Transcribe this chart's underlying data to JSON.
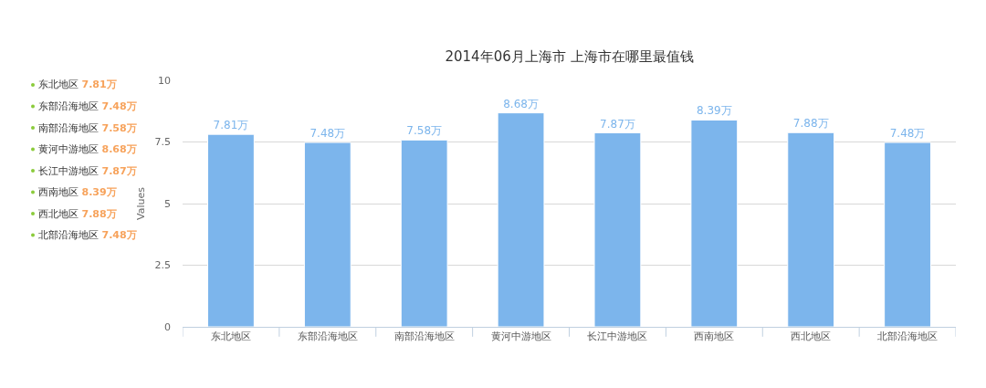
{
  "chart_data": {
    "type": "bar",
    "title": "2014年06月上海市 上海市在哪里最值钱",
    "ylabel": "Values",
    "categories": [
      "东北地区",
      "东部沿海地区",
      "南部沿海地区",
      "黄河中游地区",
      "长江中游地区",
      "西南地区",
      "西北地区",
      "北部沿海地区"
    ],
    "values": [
      7.81,
      7.48,
      7.58,
      8.68,
      7.87,
      8.39,
      7.88,
      7.48
    ],
    "value_labels": [
      "7.81万",
      "7.48万",
      "7.58万",
      "8.68万",
      "7.87万",
      "8.39万",
      "7.88万",
      "7.48万"
    ],
    "color": "#7cb5ec",
    "ylim": [
      0,
      10
    ],
    "yticks": [
      0,
      2.5,
      5,
      7.5,
      10
    ],
    "grid": "y",
    "annotations": [
      "东北地区 7.81万",
      "东部沿海地区 7.48万",
      "南部沿海地区 7.58万",
      "黄河中游地区 8.68万",
      "长江中游地区 7.87万",
      "西南地区 8.39万",
      "西北地区 7.88万",
      "北部沿海地区 7.48万"
    ]
  }
}
